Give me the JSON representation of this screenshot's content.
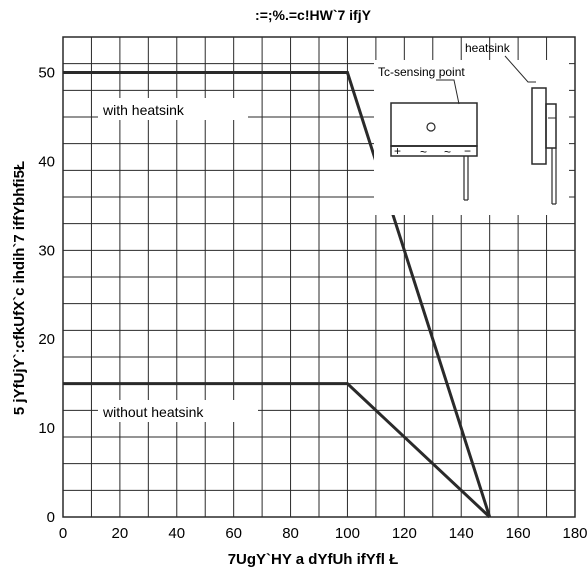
{
  "chart_data": {
    "type": "line",
    "title": ":=;%.=c!HW`7 ifjY",
    "xlabel": "7UgY`HY a dYfUh ifYfl  Ł",
    "ylabel": "5 jYfUjY`:cfkUfX`c ihdih`7 iffYbhfi5Ł",
    "xlim": [
      0,
      180
    ],
    "ylim": [
      0,
      54
    ],
    "x_ticks": [
      "0",
      "20",
      "40",
      "60",
      "80",
      "100",
      "120",
      "140",
      "160",
      "180"
    ],
    "y_ticks": [
      "0",
      "10",
      "20",
      "30",
      "40",
      "50"
    ],
    "x_tick_values": [
      0,
      20,
      40,
      60,
      80,
      100,
      120,
      140,
      160,
      180
    ],
    "y_tick_values": [
      0,
      10,
      20,
      30,
      40,
      50
    ],
    "grid": true,
    "series": [
      {
        "name": "with heatsink",
        "x": [
          0,
          100,
          150
        ],
        "y": [
          50,
          50,
          0
        ]
      },
      {
        "name": "without heatsink",
        "x": [
          0,
          100,
          150
        ],
        "y": [
          15,
          15,
          0
        ]
      }
    ],
    "annotations": {
      "with_heatsink": "with heatsink",
      "without_heatsink": "without heatsink",
      "tc_sensing_point": "Tc-sensing point",
      "heatsink": "heatsink",
      "pin_plus": "+",
      "pin_ac1": "~",
      "pin_ac2": "~",
      "pin_minus": "−"
    },
    "colors": {
      "line": "#2a2a2a",
      "grid": "#2a2a2a",
      "text": "#222222"
    }
  }
}
